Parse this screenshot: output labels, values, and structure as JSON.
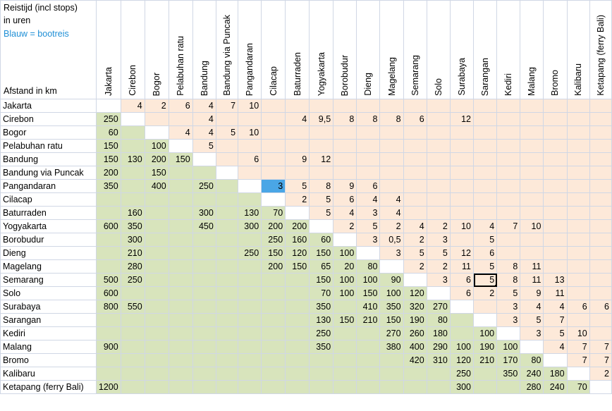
{
  "corner": {
    "line1": "Reistijd (incl stops)",
    "line2": "in uren",
    "line3": "Blauw = bootreis",
    "line4": "Afstand in km"
  },
  "colors": {
    "distance": "#d8e4bc",
    "time": "#fde9d9",
    "boat": "#4aa6e6",
    "blue_text": "#1f8fd6"
  },
  "columns": [
    "Jakarta",
    "Cirebon",
    "Bogor",
    "Pelabuhan ratu",
    "Bandung",
    "Bandung via Puncak",
    "Pangandaran",
    "Cilacap",
    "Baturraden",
    "Yogyakarta",
    "Borobudur",
    "Dieng",
    "Magelang",
    "Semarang",
    "Solo",
    "Surabaya",
    "Sarangan",
    "Kediri",
    "Malang",
    "Bromo",
    "Kalibaru",
    "Ketapang (ferry Bali)"
  ],
  "rows": [
    {
      "name": "Jakarta",
      "cells": [
        "",
        "4",
        "2",
        "6",
        "4",
        "7",
        "10",
        "",
        "",
        "",
        "",
        "",
        "",
        "",
        "",
        "",
        "",
        "",
        "",
        "",
        "",
        ""
      ]
    },
    {
      "name": "Cirebon",
      "cells": [
        "250",
        "",
        "",
        "",
        "4",
        "",
        "",
        "",
        "4",
        "9,5",
        "8",
        "8",
        "8",
        "6",
        "",
        "12",
        "",
        "",
        "",
        "",
        "",
        ""
      ]
    },
    {
      "name": "Bogor",
      "cells": [
        "60",
        "",
        "",
        "4",
        "4",
        "5",
        "10",
        "",
        "",
        "",
        "",
        "",
        "",
        "",
        "",
        "",
        "",
        "",
        "",
        "",
        "",
        ""
      ]
    },
    {
      "name": "Pelabuhan ratu",
      "cells": [
        "150",
        "",
        "100",
        "",
        "5",
        "",
        "",
        "",
        "",
        "",
        "",
        "",
        "",
        "",
        "",
        "",
        "",
        "",
        "",
        "",
        "",
        ""
      ]
    },
    {
      "name": "Bandung",
      "cells": [
        "150",
        "130",
        "200",
        "150",
        "",
        "",
        "6",
        "",
        "9",
        "12",
        "",
        "",
        "",
        "",
        "",
        "",
        "",
        "",
        "",
        "",
        "",
        ""
      ]
    },
    {
      "name": "Bandung via Puncak",
      "cells": [
        "200",
        "",
        "150",
        "",
        "",
        "",
        "",
        "",
        "",
        "",
        "",
        "",
        "",
        "",
        "",
        "",
        "",
        "",
        "",
        "",
        "",
        ""
      ]
    },
    {
      "name": "Pangandaran",
      "cells": [
        "350",
        "",
        "400",
        "",
        "250",
        "",
        "",
        "3",
        "5",
        "8",
        "9",
        "6",
        "",
        "",
        "",
        "",
        "",
        "",
        "",
        "",
        "",
        ""
      ]
    },
    {
      "name": "Cilacap",
      "cells": [
        "",
        "",
        "",
        "",
        "",
        "",
        "",
        "",
        "2",
        "5",
        "6",
        "4",
        "4",
        "",
        "",
        "",
        "",
        "",
        "",
        "",
        "",
        ""
      ]
    },
    {
      "name": "Baturraden",
      "cells": [
        "",
        "160",
        "",
        "",
        "300",
        "",
        "130",
        "70",
        "",
        "5",
        "4",
        "3",
        "4",
        "",
        "",
        "",
        "",
        "",
        "",
        "",
        "",
        ""
      ]
    },
    {
      "name": "Yogyakarta",
      "cells": [
        "600",
        "350",
        "",
        "",
        "450",
        "",
        "300",
        "200",
        "200",
        "",
        "2",
        "5",
        "2",
        "4",
        "2",
        "10",
        "4",
        "7",
        "10",
        "",
        "",
        ""
      ]
    },
    {
      "name": "Borobudur",
      "cells": [
        "",
        "300",
        "",
        "",
        "",
        "",
        "",
        "250",
        "160",
        "60",
        "",
        "3",
        "0,5",
        "2",
        "3",
        "",
        "5",
        "",
        "",
        "",
        "",
        ""
      ]
    },
    {
      "name": "Dieng",
      "cells": [
        "",
        "210",
        "",
        "",
        "",
        "",
        "250",
        "150",
        "120",
        "150",
        "100",
        "",
        "3",
        "5",
        "5",
        "12",
        "6",
        "",
        "",
        "",
        "",
        ""
      ]
    },
    {
      "name": "Magelang",
      "cells": [
        "",
        "280",
        "",
        "",
        "",
        "",
        "",
        "200",
        "150",
        "65",
        "20",
        "80",
        "",
        "2",
        "2",
        "11",
        "5",
        "8",
        "11",
        "",
        "",
        ""
      ]
    },
    {
      "name": "Semarang",
      "cells": [
        "500",
        "250",
        "",
        "",
        "",
        "",
        "",
        "",
        "",
        "150",
        "100",
        "100",
        "90",
        "",
        "3",
        "6",
        "5",
        "8",
        "11",
        "13",
        "",
        ""
      ]
    },
    {
      "name": "Solo",
      "cells": [
        "600",
        "",
        "",
        "",
        "",
        "",
        "",
        "",
        "",
        "70",
        "100",
        "150",
        "100",
        "120",
        "",
        "6",
        "2",
        "5",
        "9",
        "11",
        "",
        ""
      ]
    },
    {
      "name": "Surabaya",
      "cells": [
        "800",
        "550",
        "",
        "",
        "",
        "",
        "",
        "",
        "",
        "350",
        "",
        "410",
        "350",
        "320",
        "270",
        "",
        "",
        "3",
        "4",
        "4",
        "6",
        "6"
      ]
    },
    {
      "name": "Sarangan",
      "cells": [
        "",
        "",
        "",
        "",
        "",
        "",
        "",
        "",
        "",
        "130",
        "150",
        "210",
        "150",
        "190",
        "80",
        "",
        "",
        "3",
        "5",
        "7",
        "",
        ""
      ]
    },
    {
      "name": "Kediri",
      "cells": [
        "",
        "",
        "",
        "",
        "",
        "",
        "",
        "",
        "",
        "250",
        "",
        "",
        "270",
        "260",
        "180",
        "",
        "100",
        "",
        "3",
        "5",
        "10",
        ""
      ]
    },
    {
      "name": "Malang",
      "cells": [
        "900",
        "",
        "",
        "",
        "",
        "",
        "",
        "",
        "",
        "350",
        "",
        "",
        "380",
        "400",
        "290",
        "100",
        "190",
        "100",
        "",
        "4",
        "7",
        "7"
      ]
    },
    {
      "name": "Bromo",
      "cells": [
        "",
        "",
        "",
        "",
        "",
        "",
        "",
        "",
        "",
        "",
        "",
        "",
        "",
        "420",
        "310",
        "120",
        "210",
        "170",
        "80",
        "",
        "7",
        "7"
      ]
    },
    {
      "name": "Kalibaru",
      "cells": [
        "",
        "",
        "",
        "",
        "",
        "",
        "",
        "",
        "",
        "",
        "",
        "",
        "",
        "",
        "",
        "250",
        "",
        "350",
        "240",
        "180",
        "",
        "2"
      ]
    },
    {
      "name": "Ketapang (ferry Bali)",
      "cells": [
        "1200",
        "",
        "",
        "",
        "",
        "",
        "",
        "",
        "",
        "",
        "",
        "",
        "",
        "",
        "",
        "300",
        "",
        "",
        "280",
        "240",
        "70",
        ""
      ]
    }
  ]
}
